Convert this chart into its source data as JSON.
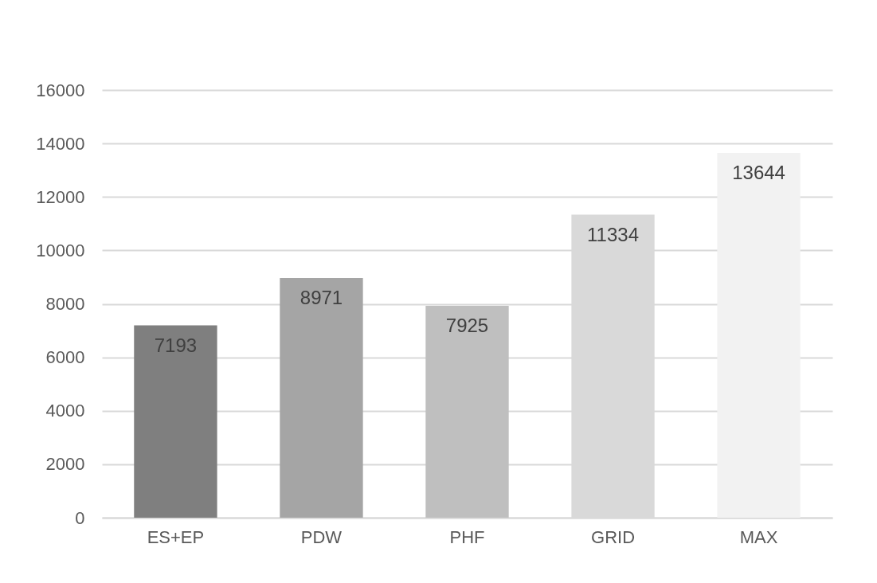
{
  "chart_data": {
    "type": "bar",
    "categories": [
      "ES+EP",
      "PDW",
      "PHF",
      "GRID",
      "MAX"
    ],
    "values": [
      7193,
      8971,
      7925,
      11334,
      13644
    ],
    "colors": [
      "#7f7f7f",
      "#a5a5a5",
      "#bfbfbf",
      "#d9d9d9",
      "#f2f2f2"
    ],
    "ylim": [
      0,
      16000
    ],
    "yticks": [
      0,
      2000,
      4000,
      6000,
      8000,
      10000,
      12000,
      14000,
      16000
    ],
    "grid": "y",
    "data_labels": true
  }
}
